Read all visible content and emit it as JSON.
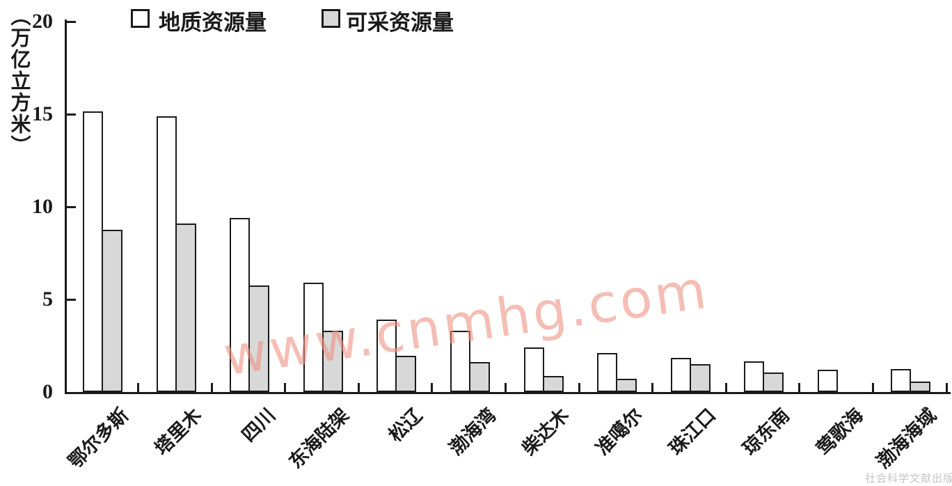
{
  "chart_data": {
    "type": "bar",
    "title": "",
    "unit_label": "（万亿立方米）",
    "categories": [
      "鄂尔多斯",
      "塔里木",
      "四川",
      "东海陆架",
      "松辽",
      "渤海湾",
      "柴达木",
      "准噶尔",
      "珠江口",
      "琼东南",
      "莺歌海",
      "渤海海域"
    ],
    "series": [
      {
        "name": "地质资源量",
        "fill": "#ffffff",
        "values": [
          15.16,
          14.9,
          9.4,
          5.9,
          3.9,
          3.3,
          2.4,
          2.1,
          1.85,
          1.65,
          1.2,
          1.25
        ]
      },
      {
        "name": "可采资源量",
        "fill": "#d8d8d8",
        "values": [
          8.76,
          9.1,
          5.75,
          3.3,
          1.95,
          1.6,
          0.85,
          0.7,
          1.5,
          1.05,
          null,
          0.55
        ]
      }
    ],
    "ylim": [
      0,
      20
    ],
    "yticks": [
      0,
      5,
      10,
      15,
      20
    ],
    "grid": false,
    "legend_position": "top-left",
    "bar_outline_color": "#1a1a1a",
    "axis_color": "#1a1a1a"
  },
  "watermark": {
    "text": "www.cnmhg.com",
    "color": "#ef9283"
  },
  "publisher_watermark": {
    "text": "社会科学文献出版社"
  }
}
